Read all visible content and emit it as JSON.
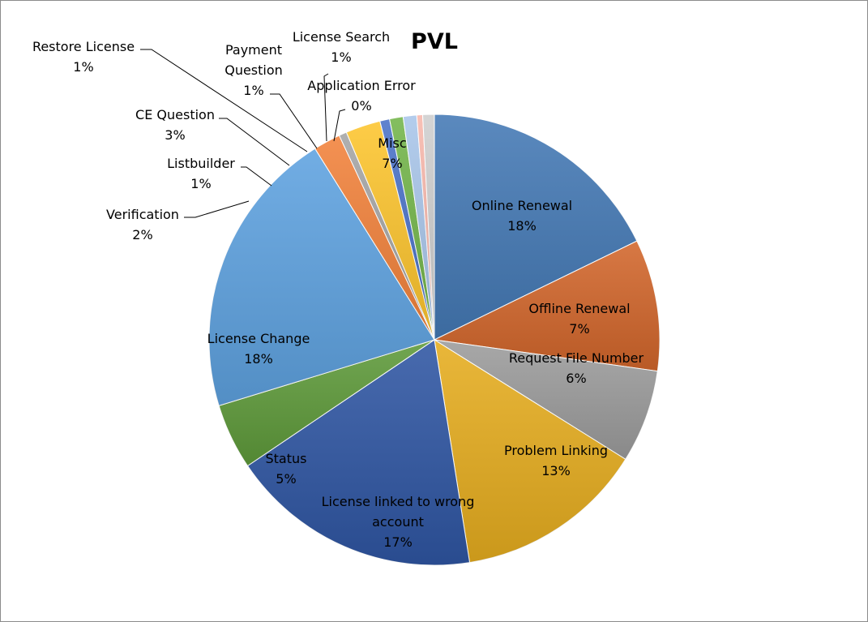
{
  "chart_data": {
    "type": "pie",
    "title": "PVL",
    "slices": [
      {
        "label": "Online Renewal",
        "value": 18,
        "pct_label": "18%",
        "color": "#4479b5"
      },
      {
        "label": "Offline Renewal",
        "value": 7,
        "pct_label": "7%",
        "color": "#d2662b"
      },
      {
        "label": "Request File Number",
        "value": 6,
        "pct_label": "6%",
        "color": "#9c9c9c"
      },
      {
        "label": "Problem Linking",
        "value": 13,
        "pct_label": "13%",
        "color": "#e6ad1f"
      },
      {
        "label": "License linked to wrong account",
        "value": 17,
        "pct_label": "17%",
        "color": "#2f56a3"
      },
      {
        "label": "Status",
        "value": 5,
        "pct_label": "5%",
        "color": "#5e9a3a"
      },
      {
        "label": "License Change",
        "value": 18,
        "pct_label": "18%",
        "color": "#5ea2e0"
      },
      {
        "label": "Verification",
        "value": 2,
        "pct_label": "2%",
        "color": "#f2823b"
      },
      {
        "label": "Listbuilder",
        "value": 1,
        "pct_label": "1%",
        "color": "#a5a5a5"
      },
      {
        "label": "CE Question",
        "value": 3,
        "pct_label": "3%",
        "color": "#fdc52e"
      },
      {
        "label": "Restore License",
        "value": 1,
        "pct_label": "1%",
        "color": "#4a72c8"
      },
      {
        "label": "Payment Question",
        "value": 1,
        "pct_label": "1%",
        "color": "#73b54a"
      },
      {
        "label": "License Search",
        "value": 1,
        "pct_label": "1%",
        "color": "#a9c6ea"
      },
      {
        "label": "Application Error",
        "value": 0,
        "pct_label": "0%",
        "color": "#f7b8ac"
      },
      {
        "label": "Misc",
        "value": 7,
        "pct_label": "7%",
        "color": "#cfcfcf"
      }
    ]
  }
}
